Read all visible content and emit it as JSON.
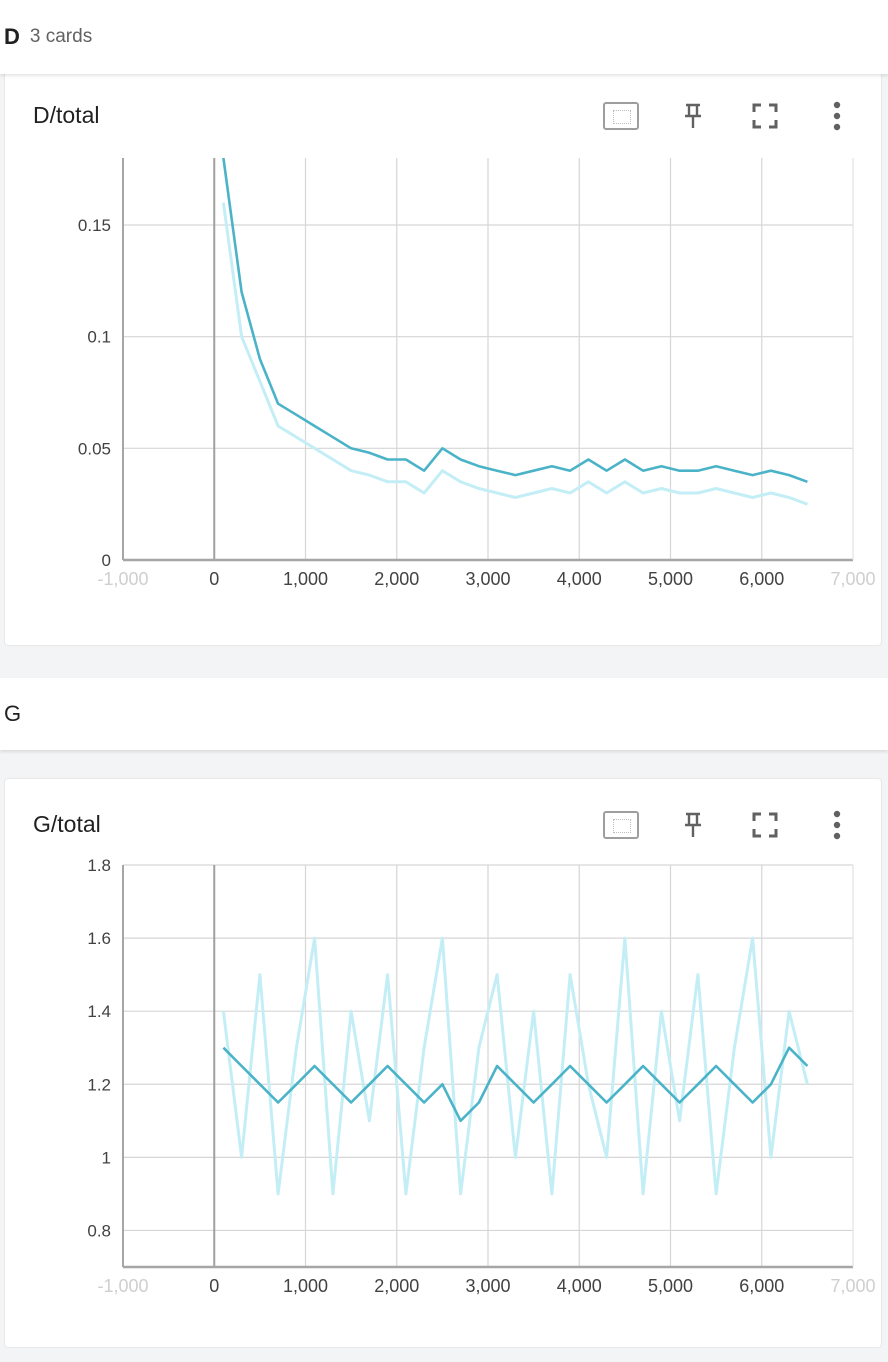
{
  "groups": [
    {
      "name": "D",
      "count_label": "3 cards"
    },
    {
      "name": "G",
      "count_label": ""
    }
  ],
  "cards": [
    {
      "title": "D/total"
    },
    {
      "title": "G/total"
    }
  ],
  "toolbar": {
    "fit_icon": "fit-domain-icon",
    "pin_icon": "pin-icon",
    "fullscreen_icon": "fullscreen-icon",
    "more_icon": "more-vert-icon"
  },
  "colors": {
    "smoothed": "#4ab3c8",
    "raw": "#c4eef6",
    "grid": "#d6d6d6",
    "axis": "#a6a6a6"
  },
  "chart_data": [
    {
      "type": "line",
      "title": "D/total",
      "xlim": [
        -1000,
        7000
      ],
      "ylim": [
        0,
        0.18
      ],
      "x_ticks": [
        -1000,
        0,
        1000,
        2000,
        3000,
        4000,
        5000,
        6000,
        7000
      ],
      "x_tick_labels": [
        "-1,000",
        "0",
        "1,000",
        "2,000",
        "3,000",
        "4,000",
        "5,000",
        "6,000",
        "7,000"
      ],
      "y_ticks": [
        0,
        0.05,
        0.1,
        0.15
      ],
      "y_tick_labels": [
        "0",
        "0.05",
        "0.1",
        "0.15"
      ],
      "grid": true,
      "legend": "none",
      "series": [
        {
          "style": "smoothed",
          "x": [
            100,
            300,
            500,
            700,
            900,
            1100,
            1300,
            1500,
            1700,
            1900,
            2100,
            2300,
            2500,
            2700,
            2900,
            3100,
            3300,
            3500,
            3700,
            3900,
            4100,
            4300,
            4500,
            4700,
            4900,
            5100,
            5300,
            5500,
            5700,
            5900,
            6100,
            6300,
            6500
          ],
          "values": [
            0.18,
            0.12,
            0.09,
            0.07,
            0.065,
            0.06,
            0.055,
            0.05,
            0.048,
            0.045,
            0.045,
            0.04,
            0.05,
            0.045,
            0.042,
            0.04,
            0.038,
            0.04,
            0.042,
            0.04,
            0.045,
            0.04,
            0.045,
            0.04,
            0.042,
            0.04,
            0.04,
            0.042,
            0.04,
            0.038,
            0.04,
            0.038,
            0.035
          ]
        },
        {
          "style": "raw",
          "x": [
            100,
            300,
            500,
            700,
            900,
            1100,
            1300,
            1500,
            1700,
            1900,
            2100,
            2300,
            2500,
            2700,
            2900,
            3100,
            3300,
            3500,
            3700,
            3900,
            4100,
            4300,
            4500,
            4700,
            4900,
            5100,
            5300,
            5500,
            5700,
            5900,
            6100,
            6300,
            6500
          ],
          "values": [
            0.16,
            0.1,
            0.08,
            0.06,
            0.055,
            0.05,
            0.045,
            0.04,
            0.038,
            0.035,
            0.035,
            0.03,
            0.04,
            0.035,
            0.032,
            0.03,
            0.028,
            0.03,
            0.032,
            0.03,
            0.035,
            0.03,
            0.035,
            0.03,
            0.032,
            0.03,
            0.03,
            0.032,
            0.03,
            0.028,
            0.03,
            0.028,
            0.025
          ]
        }
      ]
    },
    {
      "type": "line",
      "title": "G/total",
      "xlim": [
        -1000,
        7000
      ],
      "ylim": [
        0.7,
        1.8
      ],
      "x_ticks": [
        -1000,
        0,
        1000,
        2000,
        3000,
        4000,
        5000,
        6000,
        7000
      ],
      "x_tick_labels": [
        "-1,000",
        "0",
        "1,000",
        "2,000",
        "3,000",
        "4,000",
        "5,000",
        "6,000",
        "7,000"
      ],
      "y_ticks": [
        0.8,
        1,
        1.2,
        1.4,
        1.6,
        1.8
      ],
      "y_tick_labels": [
        "0.8",
        "1",
        "1.2",
        "1.4",
        "1.6",
        "1.8"
      ],
      "grid": true,
      "legend": "none",
      "series": [
        {
          "style": "smoothed",
          "x": [
            100,
            300,
            500,
            700,
            900,
            1100,
            1300,
            1500,
            1700,
            1900,
            2100,
            2300,
            2500,
            2700,
            2900,
            3100,
            3300,
            3500,
            3700,
            3900,
            4100,
            4300,
            4500,
            4700,
            4900,
            5100,
            5300,
            5500,
            5700,
            5900,
            6100,
            6300,
            6500
          ],
          "values": [
            1.3,
            1.25,
            1.2,
            1.15,
            1.2,
            1.25,
            1.2,
            1.15,
            1.2,
            1.25,
            1.2,
            1.15,
            1.2,
            1.1,
            1.15,
            1.25,
            1.2,
            1.15,
            1.2,
            1.25,
            1.2,
            1.15,
            1.2,
            1.25,
            1.2,
            1.15,
            1.2,
            1.25,
            1.2,
            1.15,
            1.2,
            1.3,
            1.25
          ]
        },
        {
          "style": "raw",
          "x": [
            100,
            300,
            500,
            700,
            900,
            1100,
            1300,
            1500,
            1700,
            1900,
            2100,
            2300,
            2500,
            2700,
            2900,
            3100,
            3300,
            3500,
            3700,
            3900,
            4100,
            4300,
            4500,
            4700,
            4900,
            5100,
            5300,
            5500,
            5700,
            5900,
            6100,
            6300,
            6500
          ],
          "values": [
            1.4,
            1.0,
            1.5,
            0.9,
            1.3,
            1.6,
            0.9,
            1.4,
            1.1,
            1.5,
            0.9,
            1.3,
            1.6,
            0.9,
            1.3,
            1.5,
            1.0,
            1.4,
            0.9,
            1.5,
            1.2,
            1.0,
            1.6,
            0.9,
            1.4,
            1.1,
            1.5,
            0.9,
            1.3,
            1.6,
            1.0,
            1.4,
            1.2
          ]
        }
      ]
    }
  ]
}
